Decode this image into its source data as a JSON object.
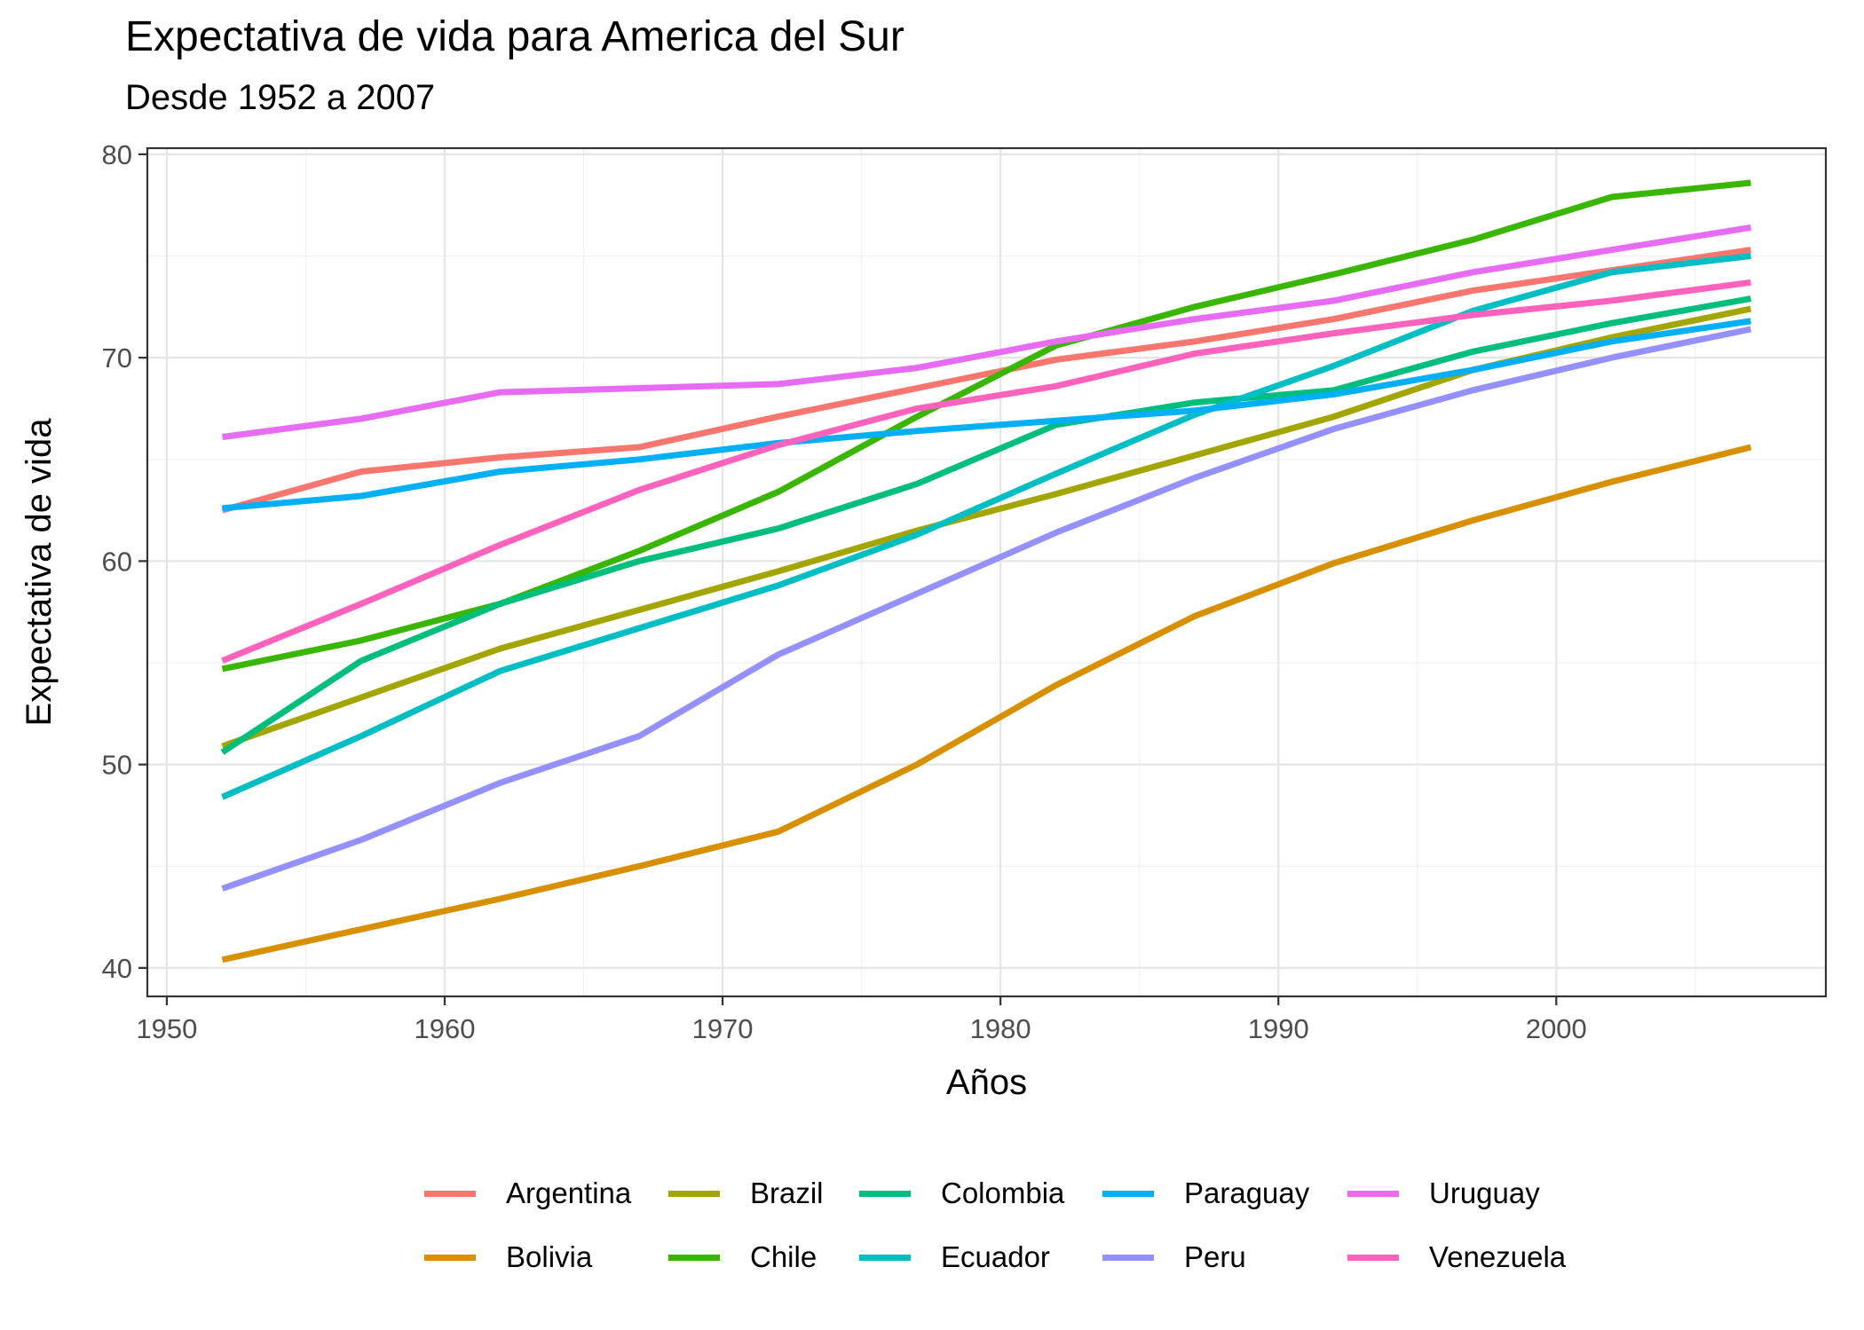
{
  "chart_data": {
    "type": "line",
    "title": "Expectativa de vida para America del Sur",
    "subtitle": "Desde 1952 a 2007",
    "xlabel": "Años",
    "ylabel": "Expectativa de vida",
    "xlim": [
      1949.3,
      2009.7
    ],
    "ylim": [
      38.6,
      80.3
    ],
    "xticks": [
      1950,
      1960,
      1970,
      1980,
      1990,
      2000
    ],
    "yticks": [
      40,
      50,
      60,
      70,
      80
    ],
    "grid": true,
    "legend_position": "bottom",
    "x": [
      1952,
      1957,
      1962,
      1967,
      1972,
      1977,
      1982,
      1987,
      1992,
      1997,
      2002,
      2007
    ],
    "series": [
      {
        "name": "Argentina",
        "color": "#F8766D",
        "values": [
          62.5,
          64.4,
          65.1,
          65.6,
          67.1,
          68.5,
          69.9,
          70.8,
          71.9,
          73.3,
          74.3,
          75.3
        ]
      },
      {
        "name": "Bolivia",
        "color": "#D89000",
        "values": [
          40.4,
          41.9,
          43.4,
          45.0,
          46.7,
          50.0,
          53.9,
          57.3,
          59.9,
          62.0,
          63.9,
          65.6
        ]
      },
      {
        "name": "Brazil",
        "color": "#A3A500",
        "values": [
          50.9,
          53.3,
          55.7,
          57.6,
          59.5,
          61.5,
          63.3,
          65.2,
          67.1,
          69.4,
          71.0,
          72.4
        ]
      },
      {
        "name": "Chile",
        "color": "#39B600",
        "values": [
          54.7,
          56.1,
          57.9,
          60.5,
          63.4,
          67.1,
          70.6,
          72.5,
          74.1,
          75.8,
          77.9,
          78.6
        ]
      },
      {
        "name": "Colombia",
        "color": "#00BF7D",
        "values": [
          50.6,
          55.1,
          57.9,
          60.0,
          61.6,
          63.8,
          66.7,
          67.8,
          68.4,
          70.3,
          71.7,
          72.9
        ]
      },
      {
        "name": "Ecuador",
        "color": "#00BFC4",
        "values": [
          48.4,
          51.4,
          54.6,
          56.7,
          58.8,
          61.3,
          64.3,
          67.2,
          69.6,
          72.3,
          74.2,
          75.0
        ]
      },
      {
        "name": "Paraguay",
        "color": "#00B0F6",
        "values": [
          62.6,
          63.2,
          64.4,
          65.0,
          65.8,
          66.4,
          66.9,
          67.4,
          68.2,
          69.4,
          70.8,
          71.8
        ]
      },
      {
        "name": "Peru",
        "color": "#9590FF",
        "values": [
          43.9,
          46.3,
          49.1,
          51.4,
          55.4,
          58.4,
          61.4,
          64.1,
          66.5,
          68.4,
          70.0,
          71.4
        ]
      },
      {
        "name": "Uruguay",
        "color": "#E76BF3",
        "values": [
          66.1,
          67.0,
          68.3,
          68.5,
          68.7,
          69.5,
          70.8,
          71.9,
          72.8,
          74.2,
          75.3,
          76.4
        ]
      },
      {
        "name": "Venezuela",
        "color": "#FF62BC",
        "values": [
          55.1,
          57.9,
          60.8,
          63.5,
          65.7,
          67.5,
          68.6,
          70.2,
          71.2,
          72.1,
          72.8,
          73.7
        ]
      }
    ]
  }
}
